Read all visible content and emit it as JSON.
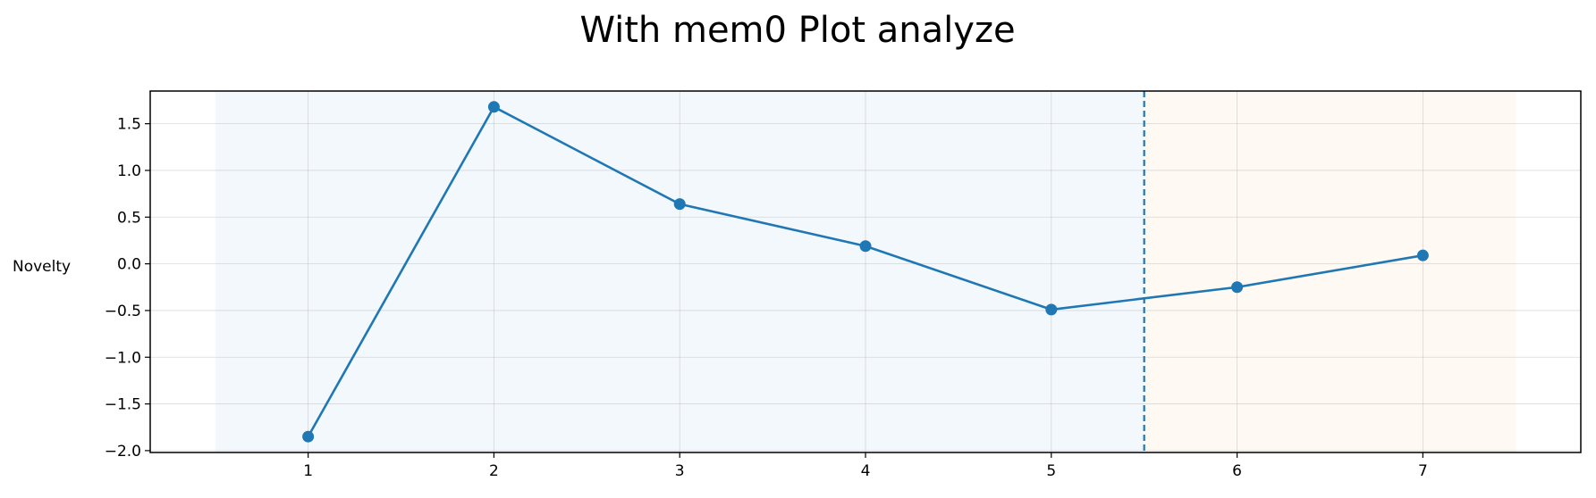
{
  "chart_data": {
    "type": "line",
    "title": "With mem0 Plot analyze",
    "xlabel": "",
    "ylabel": "Novelty",
    "x": [
      1,
      2,
      3,
      4,
      5,
      6,
      7
    ],
    "series": [
      {
        "values": [
          -1.85,
          1.68,
          0.64,
          0.19,
          -0.49,
          -0.25,
          0.09
        ],
        "color": "#1f77b4"
      }
    ],
    "xlim": [
      0.15,
      7.85
    ],
    "ylim": [
      -2.02,
      1.85
    ],
    "xticks": [
      "1",
      "2",
      "3",
      "4",
      "5",
      "6",
      "7"
    ],
    "yticks": [
      "1.5",
      "1.0",
      "0.5",
      "0.0",
      "−0.5",
      "−1.0",
      "−1.5",
      "−2.0"
    ],
    "ytick_values": [
      1.5,
      1.0,
      0.5,
      0.0,
      -0.5,
      -1.0,
      -1.5,
      -2.0
    ],
    "grid": true,
    "regions": [
      {
        "from": 0.5,
        "to": 5.5,
        "color": "#eaf2fb"
      },
      {
        "from": 5.5,
        "to": 7.5,
        "color": "#fdf4e8"
      }
    ],
    "vline": {
      "x": 5.5,
      "style": "dashed",
      "color": "#1f77b4"
    }
  }
}
